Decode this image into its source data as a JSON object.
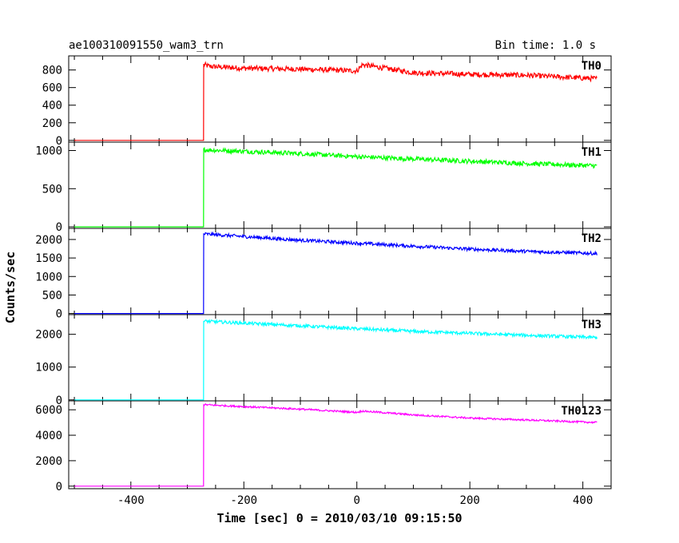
{
  "title_left": "ae100310091550_wam3_trn",
  "title_right": "Bin time: 1.0 s",
  "xlabel": "Time [sec] 0 = 2010/03/10 09:15:50",
  "ylabel": "Counts/sec",
  "chart_data": {
    "type": "line",
    "xlim": [
      -510,
      450
    ],
    "x_ticks": [
      -400,
      -200,
      0,
      200,
      400
    ],
    "grid": false,
    "panels": [
      {
        "name": "TH0",
        "color": "#ff0000",
        "ylim": [
          -20,
          960
        ],
        "y_ticks": [
          0,
          200,
          400,
          600,
          800
        ],
        "x": [
          -500,
          -272,
          -271,
          -260,
          -200,
          -100,
          0,
          10,
          100,
          200,
          300,
          425
        ],
        "y": [
          0,
          0,
          860,
          840,
          820,
          810,
          790,
          860,
          770,
          750,
          740,
          700
        ],
        "noise": 30
      },
      {
        "name": "TH1",
        "color": "#00ff00",
        "ylim": [
          -20,
          1110
        ],
        "y_ticks": [
          0,
          500,
          1000
        ],
        "x": [
          -500,
          -272,
          -271,
          -200,
          -100,
          0,
          100,
          200,
          300,
          425
        ],
        "y": [
          0,
          0,
          1010,
          990,
          960,
          920,
          890,
          860,
          830,
          800
        ],
        "noise": 30
      },
      {
        "name": "TH2",
        "color": "#0000ff",
        "ylim": [
          -30,
          2300
        ],
        "y_ticks": [
          0,
          500,
          1000,
          1500,
          2000
        ],
        "x": [
          -500,
          -272,
          -271,
          -200,
          -100,
          0,
          100,
          200,
          300,
          425
        ],
        "y": [
          0,
          0,
          2150,
          2080,
          1980,
          1900,
          1820,
          1740,
          1680,
          1620
        ],
        "noise": 45
      },
      {
        "name": "TH3",
        "color": "#00ffff",
        "ylim": [
          -30,
          2600
        ],
        "y_ticks": [
          0,
          1000,
          2000
        ],
        "x": [
          -500,
          -272,
          -271,
          -200,
          -100,
          0,
          100,
          200,
          300,
          425
        ],
        "y": [
          0,
          0,
          2400,
          2340,
          2260,
          2170,
          2090,
          2030,
          1970,
          1900
        ],
        "noise": 50
      },
      {
        "name": "TH0123",
        "color": "#ff00ff",
        "ylim": [
          -200,
          6700
        ],
        "y_ticks": [
          0,
          2000,
          4000,
          6000
        ],
        "x": [
          -500,
          -272,
          -271,
          -200,
          -100,
          0,
          10,
          100,
          200,
          300,
          425
        ],
        "y": [
          0,
          0,
          6400,
          6250,
          6050,
          5800,
          5900,
          5600,
          5350,
          5200,
          5000
        ],
        "noise": 70
      }
    ]
  }
}
